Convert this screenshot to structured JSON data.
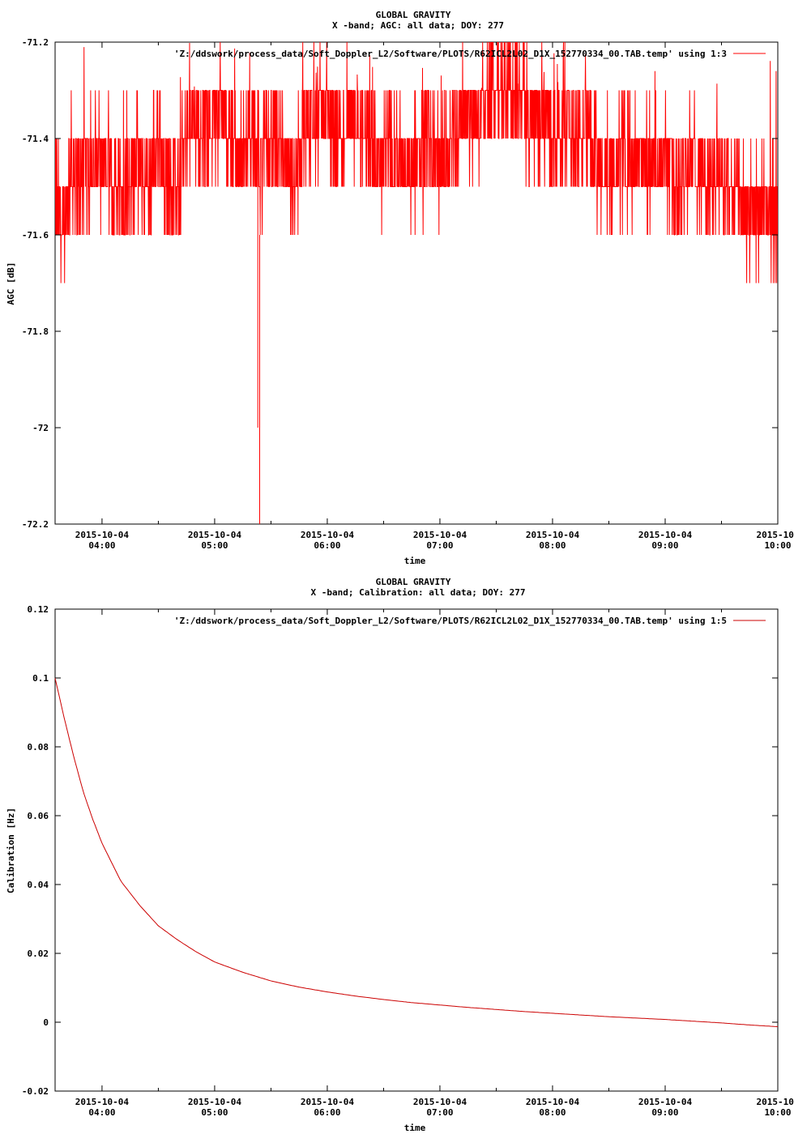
{
  "chart_data": [
    {
      "type": "line",
      "title": "GLOBAL GRAVITY",
      "subtitle": "X -band; AGC: all data; DOY: 277",
      "xlabel": "time",
      "ylabel": "AGC [dB]",
      "ylim": [
        -72.2,
        -71.2
      ],
      "yticks": [
        -71.2,
        -71.4,
        -71.6,
        -71.8,
        -72,
        -72.2
      ],
      "ytick_labels": [
        "-71.2",
        "-71.4",
        "-71.6",
        "-71.8",
        "-72",
        "-72.2"
      ],
      "xlim": [
        "2015-10-04 03:35",
        "2015-10-04 10:00"
      ],
      "xticks": [
        {
          "date": "2015-10-04",
          "time": "04:00",
          "hours": 4.0
        },
        {
          "date": "2015-10-04",
          "time": "05:00",
          "hours": 5.0
        },
        {
          "date": "2015-10-04",
          "time": "06:00",
          "hours": 6.0
        },
        {
          "date": "2015-10-04",
          "time": "07:00",
          "hours": 7.0
        },
        {
          "date": "2015-10-04",
          "time": "08:00",
          "hours": 8.0
        },
        {
          "date": "2015-10-04",
          "time": "09:00",
          "hours": 9.0
        },
        {
          "date": "2015-10-",
          "time": "10:00",
          "hours": 10.0
        }
      ],
      "legend": {
        "label": "'Z:/ddswork/process_data/Soft_Doppler_L2/Software/PLOTS/R62ICL2L02_D1X_152770334_00.TAB.temp' using 1:3",
        "position": "top-right"
      },
      "grid": false,
      "series_color": "#ff0000",
      "series": [
        {
          "values_note": "AGC level in dB vs time of day (hours); dense quantized noise",
          "points": [
            [
              3.58,
              -71.5
            ],
            [
              3.65,
              -71.6
            ],
            [
              3.72,
              -71.45
            ],
            [
              3.8,
              -71.5
            ],
            [
              3.9,
              -71.45
            ],
            [
              4.0,
              -71.45
            ],
            [
              4.1,
              -71.5
            ],
            [
              4.2,
              -71.5
            ],
            [
              4.3,
              -71.45
            ],
            [
              4.4,
              -71.5
            ],
            [
              4.5,
              -71.4
            ],
            [
              4.6,
              -71.5
            ],
            [
              4.7,
              -71.5
            ],
            [
              4.8,
              -71.35
            ],
            [
              4.9,
              -71.4
            ],
            [
              5.0,
              -71.35
            ],
            [
              5.1,
              -71.35
            ],
            [
              5.2,
              -71.45
            ],
            [
              5.3,
              -71.4
            ],
            [
              5.4,
              -71.45
            ],
            [
              5.5,
              -71.4
            ],
            [
              5.6,
              -71.45
            ],
            [
              5.7,
              -71.5
            ],
            [
              5.8,
              -71.4
            ],
            [
              5.9,
              -71.35
            ],
            [
              6.0,
              -71.35
            ],
            [
              6.1,
              -71.4
            ],
            [
              6.2,
              -71.35
            ],
            [
              6.3,
              -71.4
            ],
            [
              6.4,
              -71.45
            ],
            [
              6.5,
              -71.45
            ],
            [
              6.6,
              -71.4
            ],
            [
              6.7,
              -71.45
            ],
            [
              6.8,
              -71.45
            ],
            [
              6.9,
              -71.4
            ],
            [
              7.0,
              -71.45
            ],
            [
              7.1,
              -71.4
            ],
            [
              7.2,
              -71.35
            ],
            [
              7.3,
              -71.35
            ],
            [
              7.4,
              -71.35
            ],
            [
              7.5,
              -71.3
            ],
            [
              7.6,
              -71.3
            ],
            [
              7.7,
              -71.3
            ],
            [
              7.8,
              -71.35
            ],
            [
              7.9,
              -71.35
            ],
            [
              8.0,
              -71.4
            ],
            [
              8.1,
              -71.35
            ],
            [
              8.2,
              -71.4
            ],
            [
              8.3,
              -71.4
            ],
            [
              8.4,
              -71.45
            ],
            [
              8.5,
              -71.45
            ],
            [
              8.6,
              -71.45
            ],
            [
              8.7,
              -71.45
            ],
            [
              8.8,
              -71.45
            ],
            [
              8.9,
              -71.45
            ],
            [
              9.0,
              -71.45
            ],
            [
              9.1,
              -71.5
            ],
            [
              9.2,
              -71.45
            ],
            [
              9.3,
              -71.45
            ],
            [
              9.4,
              -71.5
            ],
            [
              9.5,
              -71.5
            ],
            [
              9.6,
              -71.5
            ],
            [
              9.7,
              -71.55
            ],
            [
              9.8,
              -71.55
            ],
            [
              9.9,
              -71.55
            ],
            [
              10.0,
              -71.55
            ]
          ]
        }
      ]
    },
    {
      "type": "line",
      "title": "GLOBAL GRAVITY",
      "subtitle": "X -band; Calibration: all data; DOY: 277",
      "xlabel": "time",
      "ylabel": "Calibration [Hz]",
      "ylim": [
        -0.02,
        0.12
      ],
      "yticks": [
        0.12,
        0.1,
        0.08,
        0.06,
        0.04,
        0.02,
        0,
        -0.02
      ],
      "ytick_labels": [
        "0.12",
        "0.1",
        "0.08",
        "0.06",
        "0.04",
        "0.02",
        "0",
        "-0.02"
      ],
      "xlim": [
        "2015-10-04 03:35",
        "2015-10-04 10:00"
      ],
      "xticks": [
        {
          "date": "2015-10-04",
          "time": "04:00",
          "hours": 4.0
        },
        {
          "date": "2015-10-04",
          "time": "05:00",
          "hours": 5.0
        },
        {
          "date": "2015-10-04",
          "time": "06:00",
          "hours": 6.0
        },
        {
          "date": "2015-10-04",
          "time": "07:00",
          "hours": 7.0
        },
        {
          "date": "2015-10-04",
          "time": "08:00",
          "hours": 8.0
        },
        {
          "date": "2015-10-04",
          "time": "09:00",
          "hours": 9.0
        },
        {
          "date": "2015-10-",
          "time": "10:00",
          "hours": 10.0
        }
      ],
      "legend": {
        "label": "'Z:/ddswork/process_data/Soft_Doppler_L2/Software/PLOTS/R62ICL2L02_D1X_152770334_00.TAB.temp' using 1:5",
        "position": "top-right"
      },
      "grid": false,
      "series_color": "#cc0000",
      "series": [
        {
          "points": [
            [
              3.583,
              0.1
            ],
            [
              3.667,
              0.088
            ],
            [
              3.75,
              0.077
            ],
            [
              3.833,
              0.067
            ],
            [
              3.917,
              0.059
            ],
            [
              4.0,
              0.052
            ],
            [
              4.167,
              0.041
            ],
            [
              4.333,
              0.034
            ],
            [
              4.5,
              0.028
            ],
            [
              4.667,
              0.024
            ],
            [
              4.833,
              0.0205
            ],
            [
              5.0,
              0.0175
            ],
            [
              5.25,
              0.0145
            ],
            [
              5.5,
              0.012
            ],
            [
              5.75,
              0.0102
            ],
            [
              6.0,
              0.0088
            ],
            [
              6.25,
              0.0076
            ],
            [
              6.5,
              0.0066
            ],
            [
              6.75,
              0.0057
            ],
            [
              7.0,
              0.005
            ],
            [
              7.25,
              0.0043
            ],
            [
              7.5,
              0.0037
            ],
            [
              7.75,
              0.0031
            ],
            [
              8.0,
              0.0026
            ],
            [
              8.25,
              0.0021
            ],
            [
              8.5,
              0.0016
            ],
            [
              8.75,
              0.0012
            ],
            [
              9.0,
              0.0008
            ],
            [
              9.25,
              0.0003
            ],
            [
              9.5,
              -0.0002
            ],
            [
              9.75,
              -0.0008
            ],
            [
              10.0,
              -0.0013
            ]
          ]
        }
      ]
    }
  ]
}
